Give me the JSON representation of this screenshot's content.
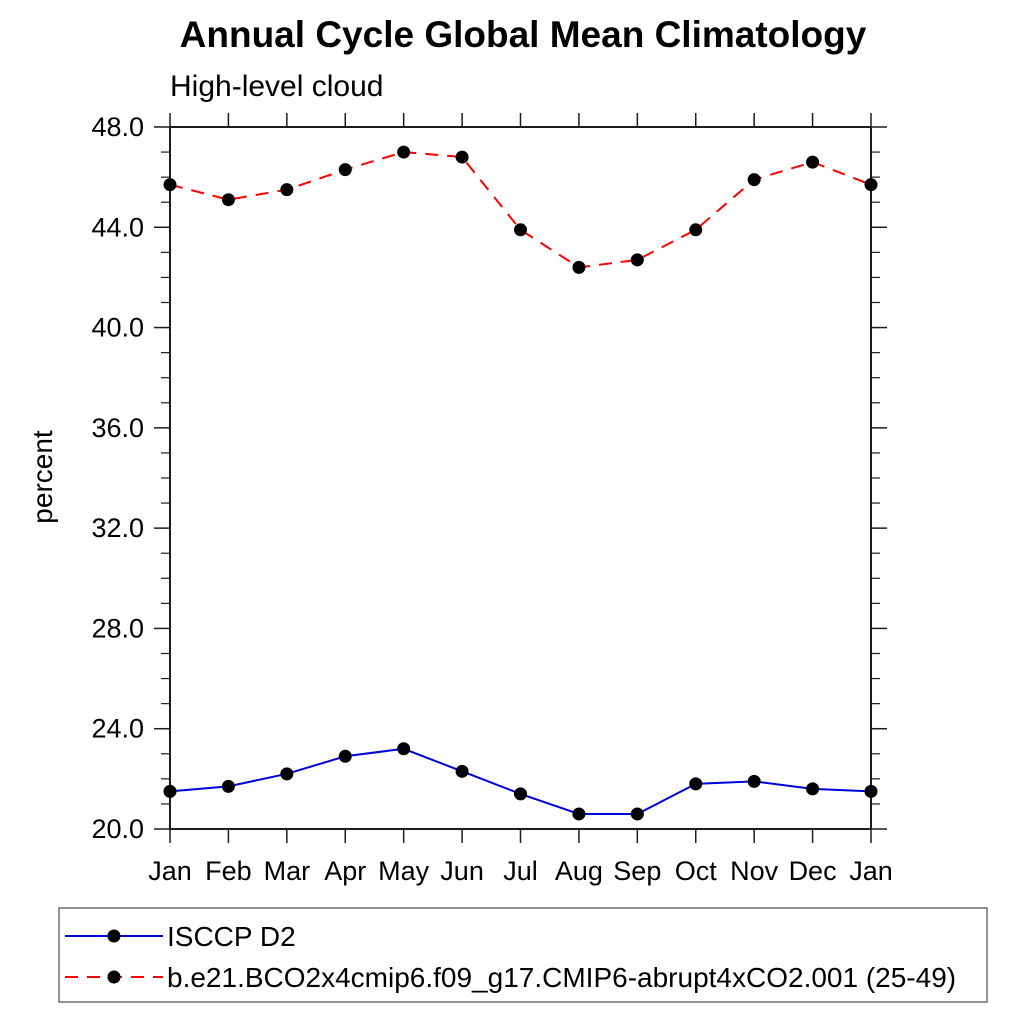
{
  "chart_data": {
    "type": "line",
    "title": "Annual Cycle Global Mean Climatology",
    "subtitle": "High-level cloud",
    "ylabel": "percent",
    "categories": [
      "Jan",
      "Feb",
      "Mar",
      "Apr",
      "May",
      "Jun",
      "Jul",
      "Aug",
      "Sep",
      "Oct",
      "Nov",
      "Dec",
      "Jan"
    ],
    "ylim": [
      20.0,
      48.0
    ],
    "y_major_tick_step": 4,
    "y_minor_tick_step": 1,
    "y_tick_labels": [
      "20.0",
      "24.0",
      "28.0",
      "32.0",
      "36.0",
      "40.0",
      "44.0",
      "48.0"
    ],
    "grid": false,
    "frame_color": "#1c1c1c",
    "legend_position": "bottom-left-box",
    "series": [
      {
        "name": "ISCCP D2",
        "color": "#0000dd",
        "line_style": "solid",
        "marker": "filled-circle",
        "marker_color": "#000000",
        "values": [
          21.5,
          21.7,
          22.2,
          22.9,
          23.2,
          22.3,
          21.4,
          20.6,
          20.6,
          21.8,
          21.9,
          21.6,
          21.5
        ]
      },
      {
        "name": "b.e21.BCO2x4cmip6.f09_g17.CMIP6-abrupt4xCO2.001 (25-49)",
        "color": "#ff0000",
        "line_style": "dashed",
        "marker": "filled-circle",
        "marker_color": "#000000",
        "values": [
          45.7,
          45.1,
          45.5,
          46.3,
          47.0,
          46.8,
          43.9,
          42.4,
          42.7,
          43.9,
          45.9,
          46.6,
          45.7
        ]
      }
    ]
  }
}
